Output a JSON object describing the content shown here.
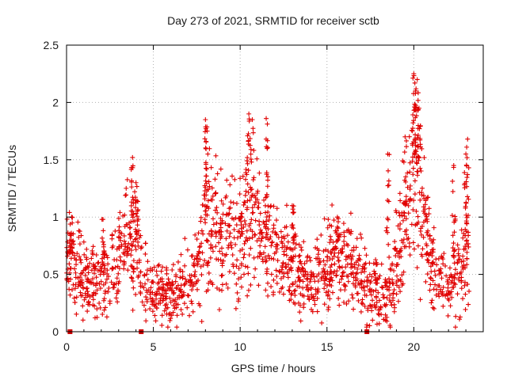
{
  "chart_data": {
    "type": "scatter",
    "title": "Day 273 of 2021, SRMTID for receiver sctb",
    "xlabel": "GPS time / hours",
    "ylabel": "SRMTID / TECUs",
    "xlim": [
      0,
      24
    ],
    "ylim": [
      0,
      2.5
    ],
    "xticks": [
      0,
      5,
      10,
      15,
      20
    ],
    "yticks": [
      0,
      0.5,
      1,
      1.5,
      2,
      2.5
    ],
    "xtick_labels": [
      "0",
      "5",
      "10",
      "15",
      "20"
    ],
    "ytick_labels": [
      "0",
      "0.5",
      "1",
      "1.5",
      "2",
      "2.5"
    ],
    "grid": true,
    "marker": "+",
    "color": "#e00000",
    "markers_at_zero": [
      0.2,
      4.3,
      17.3
    ],
    "trend": [
      [
        0.0,
        0.72
      ],
      [
        0.5,
        0.55
      ],
      [
        1.0,
        0.48
      ],
      [
        1.5,
        0.45
      ],
      [
        2.0,
        0.42
      ],
      [
        2.5,
        0.5
      ],
      [
        3.0,
        0.7
      ],
      [
        3.5,
        0.85
      ],
      [
        4.0,
        0.75
      ],
      [
        4.5,
        0.45
      ],
      [
        5.0,
        0.33
      ],
      [
        5.5,
        0.32
      ],
      [
        6.0,
        0.33
      ],
      [
        6.5,
        0.38
      ],
      [
        7.0,
        0.45
      ],
      [
        7.5,
        0.55
      ],
      [
        8.0,
        0.9
      ],
      [
        8.5,
        0.85
      ],
      [
        9.0,
        0.82
      ],
      [
        9.5,
        0.88
      ],
      [
        10.0,
        0.92
      ],
      [
        10.5,
        0.98
      ],
      [
        11.0,
        0.9
      ],
      [
        11.5,
        0.78
      ],
      [
        12.0,
        0.68
      ],
      [
        12.5,
        0.62
      ],
      [
        13.0,
        0.55
      ],
      [
        13.5,
        0.5
      ],
      [
        14.0,
        0.4
      ],
      [
        14.5,
        0.5
      ],
      [
        15.0,
        0.58
      ],
      [
        15.5,
        0.62
      ],
      [
        16.0,
        0.58
      ],
      [
        16.5,
        0.55
      ],
      [
        17.0,
        0.48
      ],
      [
        17.5,
        0.42
      ],
      [
        18.0,
        0.35
      ],
      [
        18.5,
        0.28
      ],
      [
        19.0,
        0.6
      ],
      [
        19.5,
        0.9
      ],
      [
        20.0,
        1.35
      ],
      [
        20.5,
        1.05
      ],
      [
        21.0,
        0.58
      ],
      [
        21.5,
        0.42
      ],
      [
        22.0,
        0.38
      ],
      [
        22.5,
        0.5
      ],
      [
        23.0,
        0.65
      ],
      [
        23.2,
        0.6
      ]
    ],
    "peaks": [
      [
        3.8,
        1.52
      ],
      [
        4.0,
        1.3
      ],
      [
        8.0,
        1.85
      ],
      [
        8.1,
        1.75
      ],
      [
        10.5,
        1.9
      ],
      [
        10.7,
        1.85
      ],
      [
        11.5,
        1.86
      ],
      [
        20.0,
        2.25
      ],
      [
        20.2,
        2.2
      ],
      [
        20.1,
        2.1
      ],
      [
        20.3,
        1.95
      ],
      [
        19.5,
        1.7
      ],
      [
        18.5,
        1.55
      ],
      [
        22.3,
        1.45
      ],
      [
        23.1,
        1.68
      ],
      [
        23.0,
        1.55
      ],
      [
        0.3,
        1.0
      ],
      [
        2.1,
        0.98
      ],
      [
        15.6,
        1.0
      ],
      [
        13.0,
        1.1
      ]
    ]
  }
}
